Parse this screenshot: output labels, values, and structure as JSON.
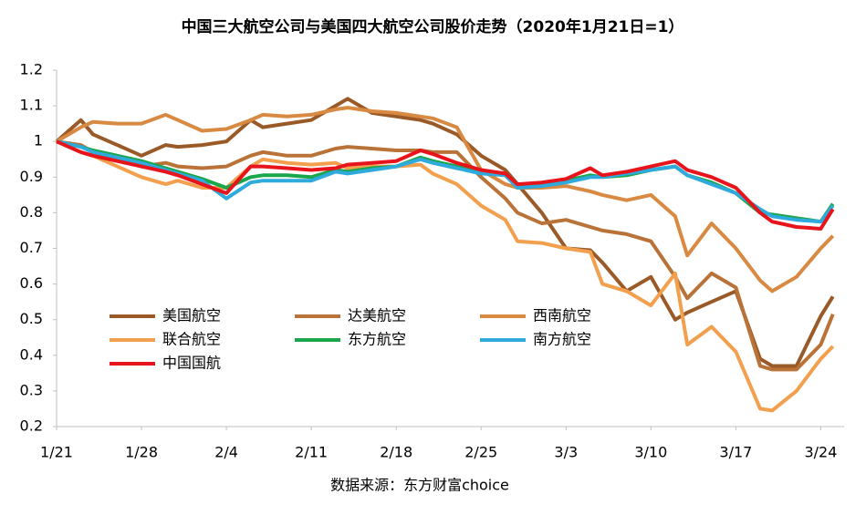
{
  "chart_data": {
    "type": "line",
    "title": "中国三大航空公司与美国四大航空公司股价走势（2020年1月21日=1）",
    "source": "数据来源：东方财富choice",
    "x": [
      0,
      2,
      3,
      5,
      7,
      9,
      10,
      12,
      14,
      16,
      17,
      19,
      21,
      23,
      24,
      26,
      28,
      30,
      31,
      33,
      35,
      37,
      38,
      40,
      42,
      44,
      45,
      47,
      49,
      51,
      52,
      54,
      56,
      58,
      59,
      61,
      63,
      64
    ],
    "xlim": [
      0,
      65
    ],
    "xticks": [
      {
        "value": 0,
        "label": "1/21"
      },
      {
        "value": 7,
        "label": "1/28"
      },
      {
        "value": 14,
        "label": "2/4"
      },
      {
        "value": 21,
        "label": "2/11"
      },
      {
        "value": 28,
        "label": "2/18"
      },
      {
        "value": 35,
        "label": "2/25"
      },
      {
        "value": 42,
        "label": "3/3"
      },
      {
        "value": 49,
        "label": "3/10"
      },
      {
        "value": 56,
        "label": "3/17"
      },
      {
        "value": 63,
        "label": "3/24"
      }
    ],
    "ylim": [
      0.2,
      1.2
    ],
    "yticks": [
      0.2,
      0.3,
      0.4,
      0.5,
      0.6,
      0.7,
      0.8,
      0.9,
      1,
      1.1,
      1.2
    ],
    "grid": false,
    "series": [
      {
        "name": "美国航空",
        "color": "#9a5a28",
        "values": [
          1.0,
          1.06,
          1.02,
          0.99,
          0.96,
          0.99,
          0.985,
          0.99,
          1.0,
          1.06,
          1.04,
          1.05,
          1.06,
          1.1,
          1.12,
          1.08,
          1.07,
          1.06,
          1.05,
          1.02,
          0.96,
          0.92,
          0.88,
          0.8,
          0.7,
          0.695,
          0.66,
          0.58,
          0.62,
          0.5,
          0.52,
          0.55,
          0.58,
          0.39,
          0.37,
          0.37,
          0.51,
          0.565
        ]
      },
      {
        "name": "达美航空",
        "color": "#b97238",
        "values": [
          1.0,
          0.99,
          0.97,
          0.95,
          0.93,
          0.94,
          0.93,
          0.925,
          0.93,
          0.96,
          0.97,
          0.96,
          0.96,
          0.98,
          0.985,
          0.98,
          0.975,
          0.975,
          0.97,
          0.97,
          0.9,
          0.84,
          0.8,
          0.77,
          0.78,
          0.76,
          0.75,
          0.74,
          0.72,
          0.62,
          0.56,
          0.63,
          0.59,
          0.37,
          0.36,
          0.36,
          0.43,
          0.515
        ]
      },
      {
        "name": "西南航空",
        "color": "#d98a42",
        "values": [
          1.0,
          1.04,
          1.055,
          1.05,
          1.05,
          1.075,
          1.06,
          1.03,
          1.035,
          1.06,
          1.075,
          1.07,
          1.075,
          1.09,
          1.095,
          1.085,
          1.08,
          1.07,
          1.065,
          1.04,
          0.92,
          0.88,
          0.87,
          0.87,
          0.875,
          0.86,
          0.85,
          0.835,
          0.85,
          0.79,
          0.68,
          0.77,
          0.7,
          0.61,
          0.58,
          0.62,
          0.7,
          0.735
        ]
      },
      {
        "name": "联合航空",
        "color": "#f2a04e",
        "values": [
          1.0,
          0.97,
          0.96,
          0.93,
          0.9,
          0.88,
          0.89,
          0.87,
          0.87,
          0.93,
          0.95,
          0.94,
          0.935,
          0.94,
          0.925,
          0.93,
          0.93,
          0.935,
          0.91,
          0.88,
          0.82,
          0.78,
          0.72,
          0.715,
          0.7,
          0.69,
          0.6,
          0.58,
          0.54,
          0.63,
          0.43,
          0.48,
          0.41,
          0.25,
          0.245,
          0.3,
          0.39,
          0.425
        ]
      },
      {
        "name": "东方航空",
        "color": "#1aa64a",
        "values": [
          1.0,
          0.985,
          0.975,
          0.96,
          0.945,
          0.925,
          0.915,
          0.895,
          0.87,
          0.9,
          0.905,
          0.905,
          0.9,
          0.92,
          0.915,
          0.925,
          0.93,
          0.955,
          0.945,
          0.93,
          0.915,
          0.905,
          0.875,
          0.88,
          0.89,
          0.905,
          0.9,
          0.905,
          0.92,
          0.93,
          0.905,
          0.885,
          0.855,
          0.8,
          0.795,
          0.785,
          0.775,
          0.825
        ]
      },
      {
        "name": "南方航空",
        "color": "#2eaadc",
        "values": [
          1.0,
          0.985,
          0.97,
          0.955,
          0.94,
          0.92,
          0.91,
          0.89,
          0.84,
          0.885,
          0.89,
          0.89,
          0.89,
          0.915,
          0.91,
          0.92,
          0.93,
          0.95,
          0.94,
          0.925,
          0.91,
          0.905,
          0.87,
          0.875,
          0.885,
          0.9,
          0.9,
          0.91,
          0.92,
          0.93,
          0.905,
          0.88,
          0.855,
          0.81,
          0.79,
          0.78,
          0.775,
          0.82
        ]
      },
      {
        "name": "中国国航",
        "color": "#e8141b",
        "values": [
          1.0,
          0.97,
          0.96,
          0.945,
          0.93,
          0.915,
          0.905,
          0.88,
          0.855,
          0.93,
          0.93,
          0.925,
          0.92,
          0.925,
          0.935,
          0.94,
          0.945,
          0.975,
          0.965,
          0.94,
          0.92,
          0.91,
          0.88,
          0.885,
          0.895,
          0.925,
          0.905,
          0.915,
          0.93,
          0.945,
          0.92,
          0.9,
          0.87,
          0.8,
          0.775,
          0.76,
          0.755,
          0.81
        ]
      }
    ]
  }
}
